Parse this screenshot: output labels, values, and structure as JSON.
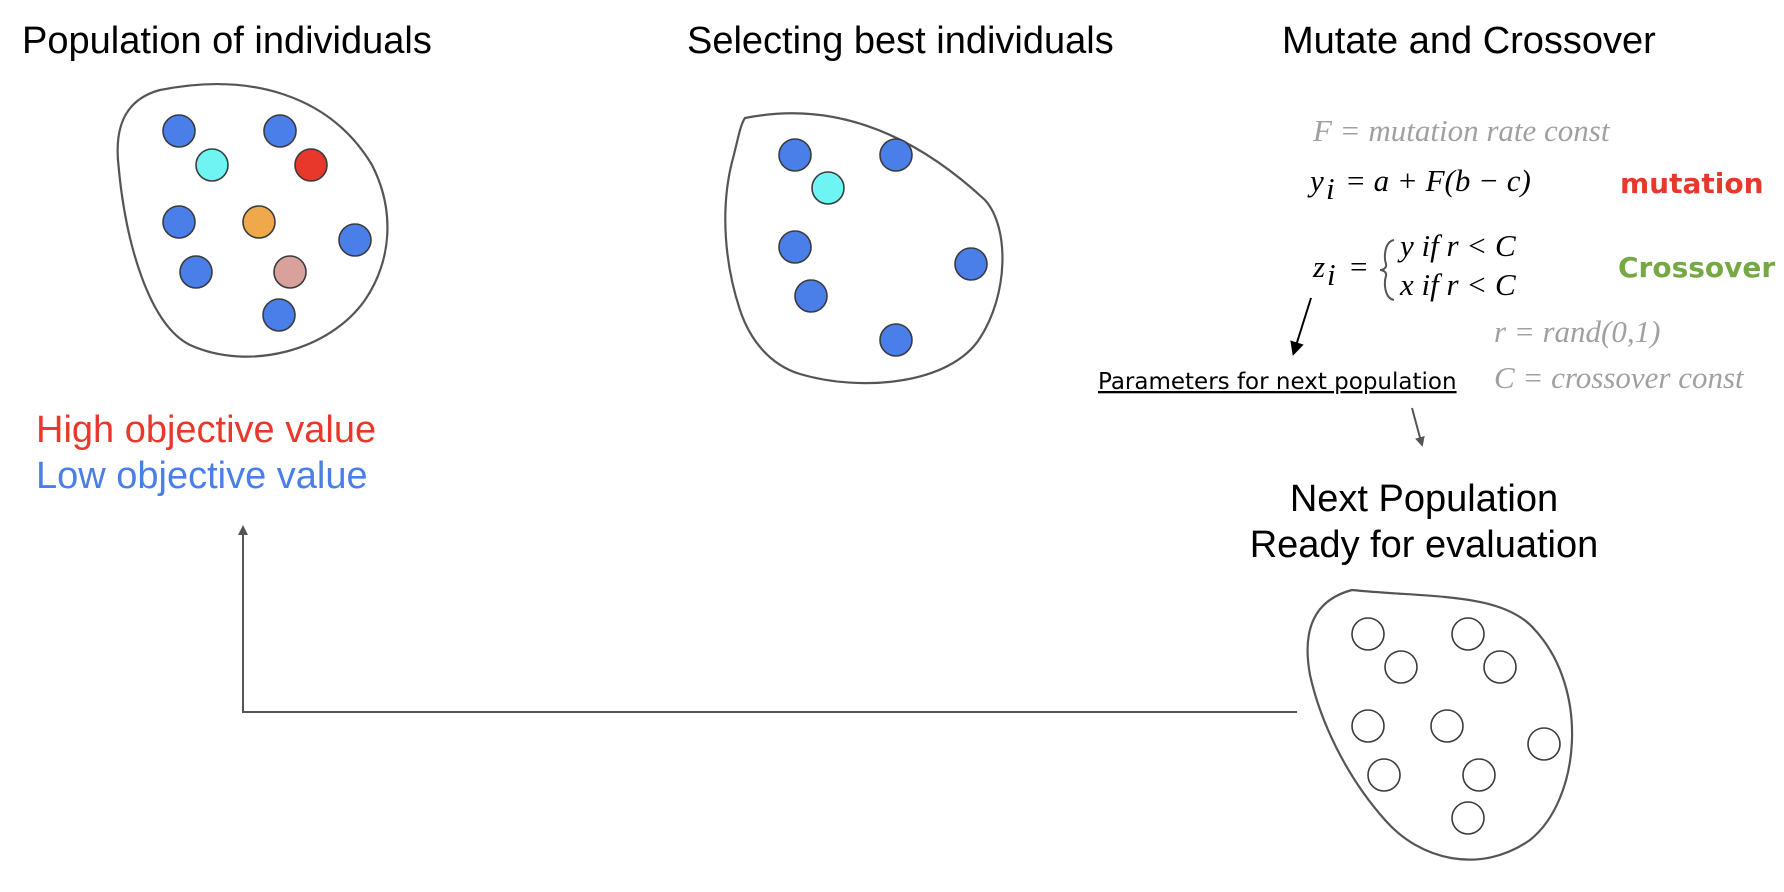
{
  "titles": {
    "population": "Population of individuals",
    "selecting": "Selecting best individuals",
    "mutate": "Mutate and Crossover",
    "next_line1": "Next Population",
    "next_line2": "Ready for evaluation"
  },
  "legend": {
    "high": "High objective value",
    "low": "Low objective value",
    "high_color": "#e8382c",
    "low_color": "#4a7ee8"
  },
  "formulas": {
    "f_def": "F = mutation rate const",
    "y_lhs": "y",
    "y_rhs": "= a + F(b − c)",
    "z_lhs": "z",
    "z_eq": "=",
    "z_case1": "y  if  r < C",
    "z_case2": "x  if  r < C",
    "r_def": "r = rand(0,1)",
    "c_def": "C = crossover const",
    "subscript": "i"
  },
  "tags": {
    "mutation": "mutation",
    "mutation_color": "#e8382c",
    "crossover": "Crossover",
    "crossover_color": "#76a843"
  },
  "annotation": {
    "parameters": "Parameters for next population"
  },
  "populations": {
    "initial": [
      "blue",
      "blue",
      "cyan",
      "red",
      "blue",
      "orange",
      "blue",
      "blue",
      "pink",
      "blue"
    ],
    "selected": [
      "blue",
      "blue",
      "cyan",
      "blue",
      "blue",
      "blue",
      "blue"
    ],
    "next": [
      "empty",
      "empty",
      "empty",
      "empty",
      "empty",
      "empty",
      "empty",
      "empty",
      "empty",
      "empty"
    ]
  },
  "colors": {
    "blue": "#4a7ee8",
    "cyan": "#6ef5f3",
    "red": "#e8382c",
    "orange": "#f0a84c",
    "pink": "#d9a19b",
    "empty": "#ffffff",
    "gray_text": "#a0a0a0"
  }
}
